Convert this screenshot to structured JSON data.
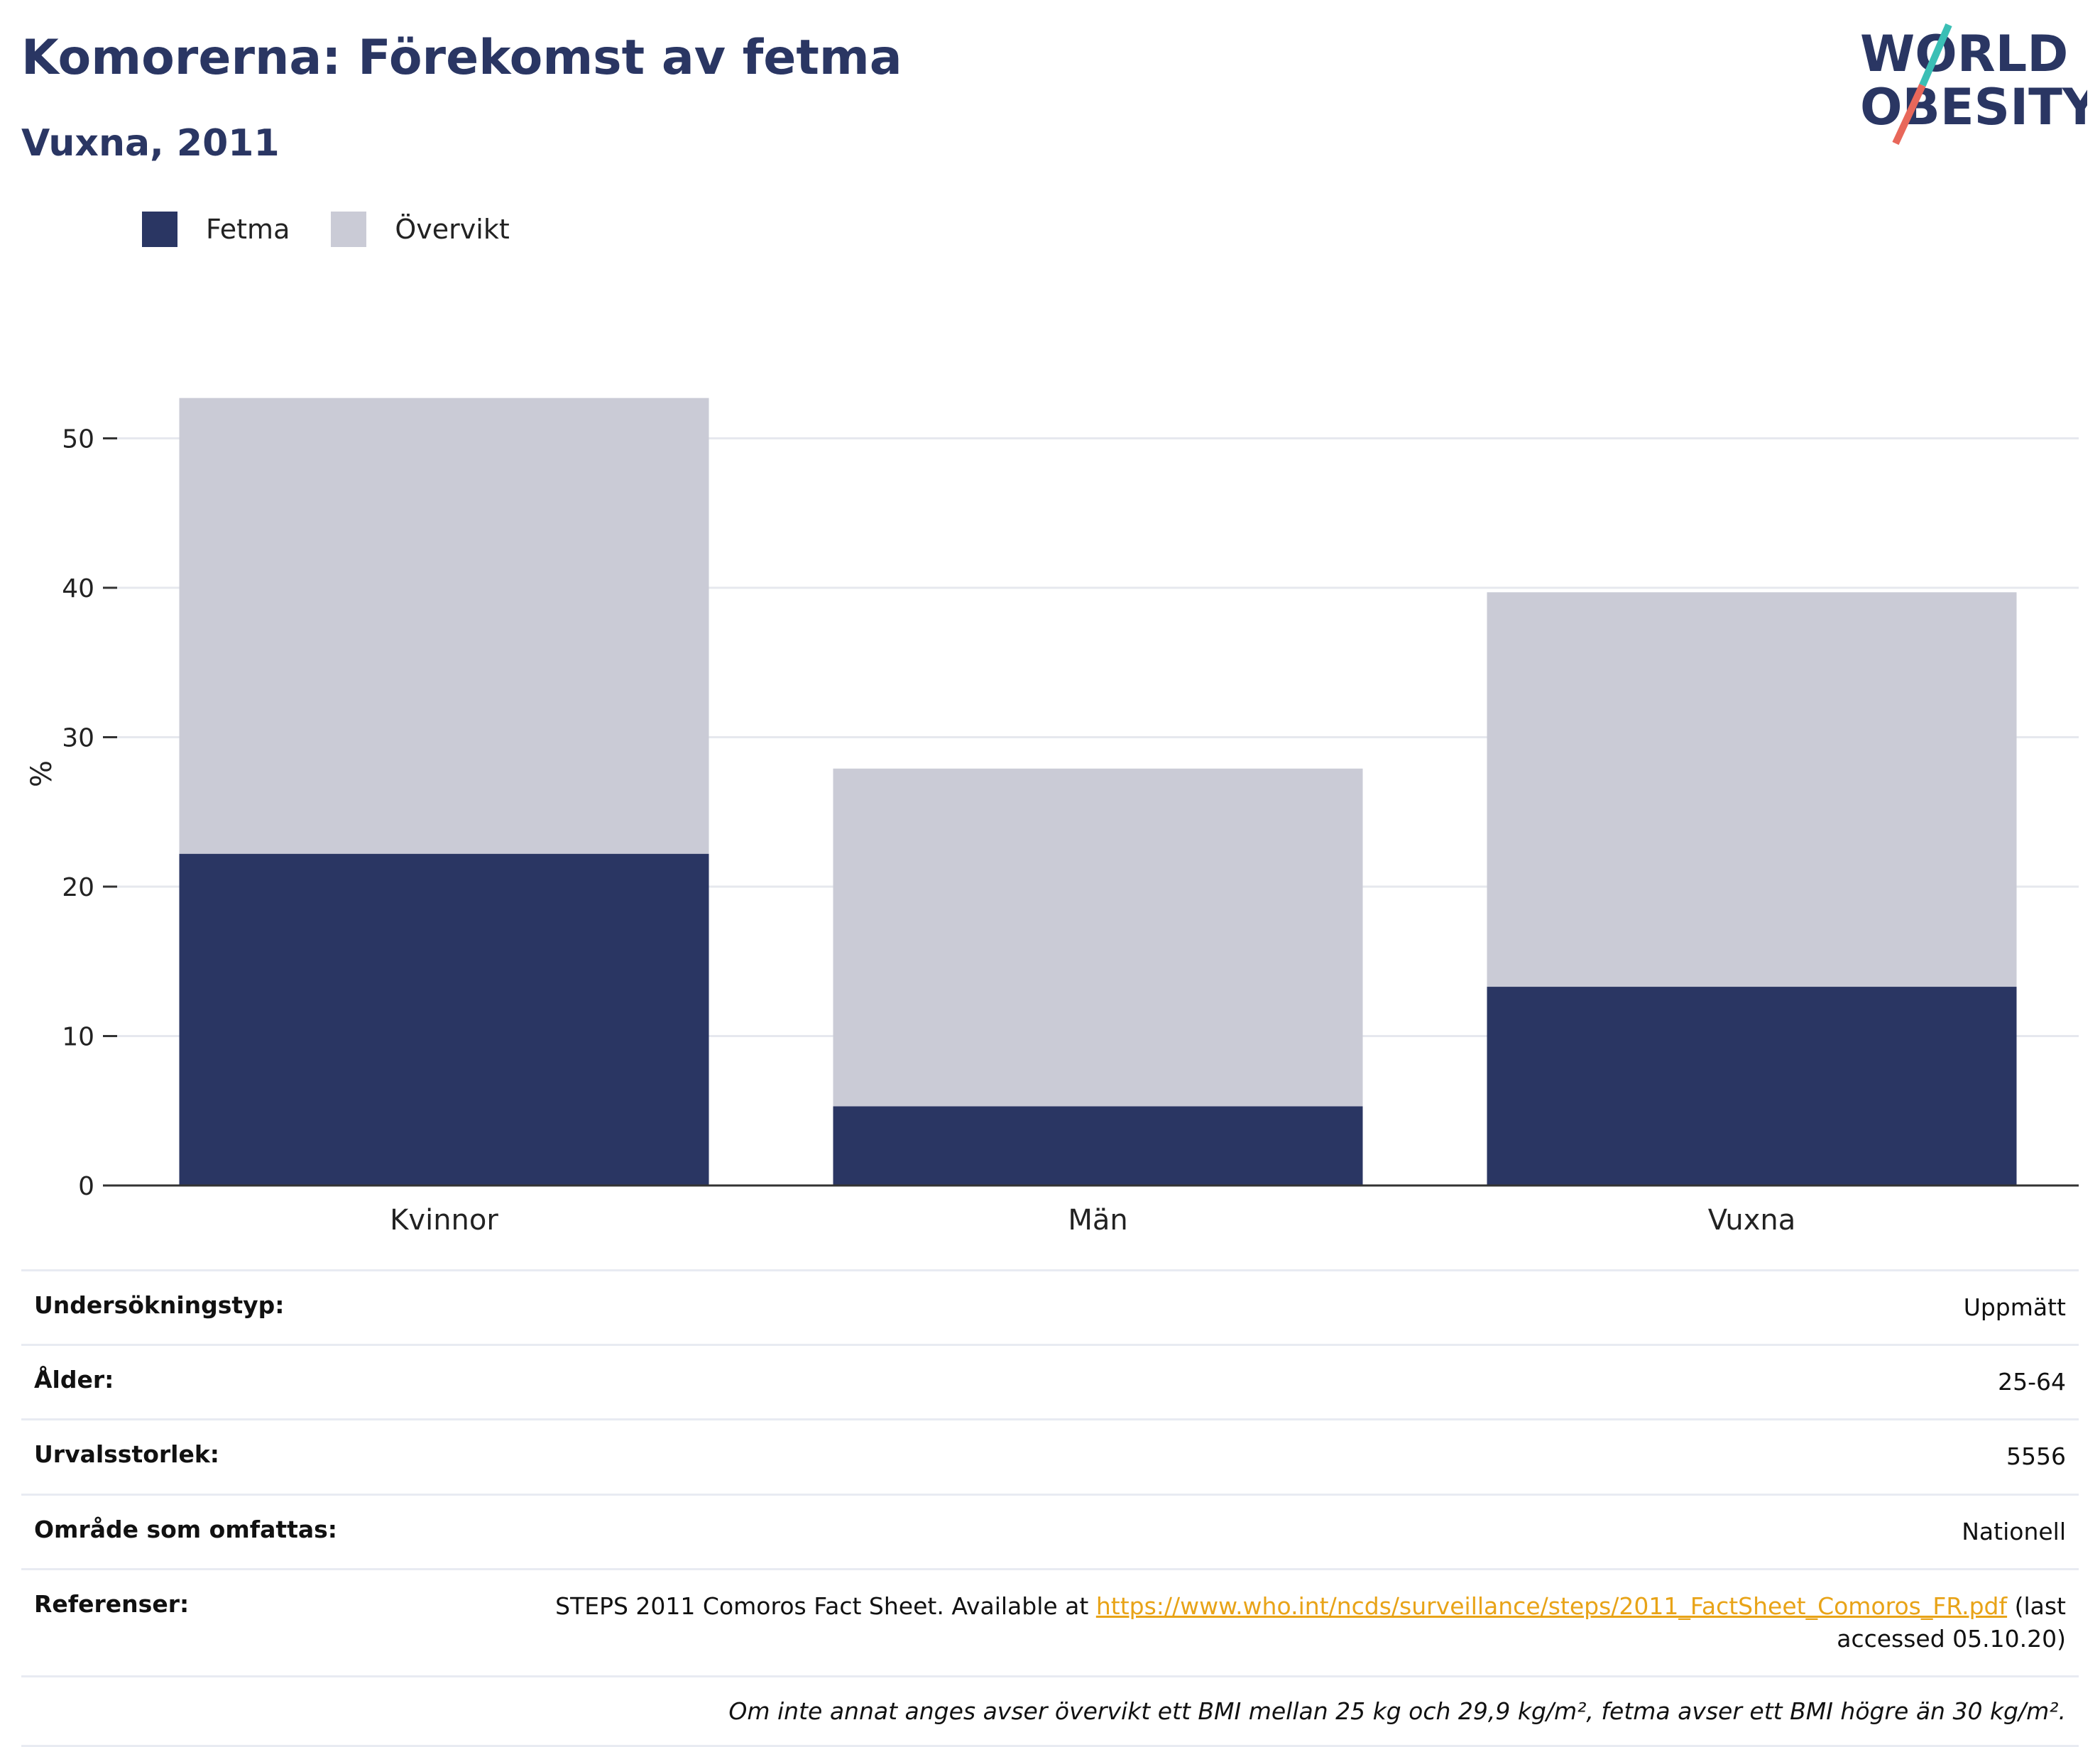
{
  "header": {
    "title": "Komorerna: Förekomst av fetma",
    "subtitle": "Vuxna, 2011",
    "logo_line1": "WORLD",
    "logo_line2": "OBESITY"
  },
  "legend": [
    {
      "label": "Fetma",
      "color": "#2a3663"
    },
    {
      "label": "Övervikt",
      "color": "#cacbd6"
    }
  ],
  "chart_data": {
    "type": "bar",
    "stacked": true,
    "categories": [
      "Kvinnor",
      "Män",
      "Vuxna"
    ],
    "series": [
      {
        "name": "Fetma",
        "values": [
          22.2,
          5.3,
          13.3
        ],
        "color": "#2a3663"
      },
      {
        "name": "Övervikt",
        "values": [
          30.5,
          22.6,
          26.4
        ],
        "color": "#cacbd6"
      }
    ],
    "xlabel": "",
    "ylabel": "%",
    "ylim": [
      0,
      55
    ],
    "yticks": [
      0,
      10,
      20,
      30,
      40,
      50
    ],
    "grid": true,
    "legend_position": "top-left"
  },
  "info": {
    "rows": [
      {
        "label": "Undersökningstyp:",
        "value": "Uppmätt"
      },
      {
        "label": "Ålder:",
        "value": "25-64"
      },
      {
        "label": "Urvalsstorlek:",
        "value": "5556"
      },
      {
        "label": "Område som omfattas:",
        "value": "Nationell"
      }
    ],
    "ref_label": "Referenser:",
    "ref_prefix": "STEPS 2011 Comoros Fact Sheet. Available at ",
    "ref_link": "https://www.who.int/ncds/surveillance/steps/2011_FactSheet_Comoros_FR.pdf",
    "ref_suffix": " (last accessed 05.10.20)",
    "note": "Om inte annat anges avser övervikt ett BMI mellan 25 kg och 29,9 kg/m², fetma avser ett BMI högre än 30 kg/m²."
  }
}
